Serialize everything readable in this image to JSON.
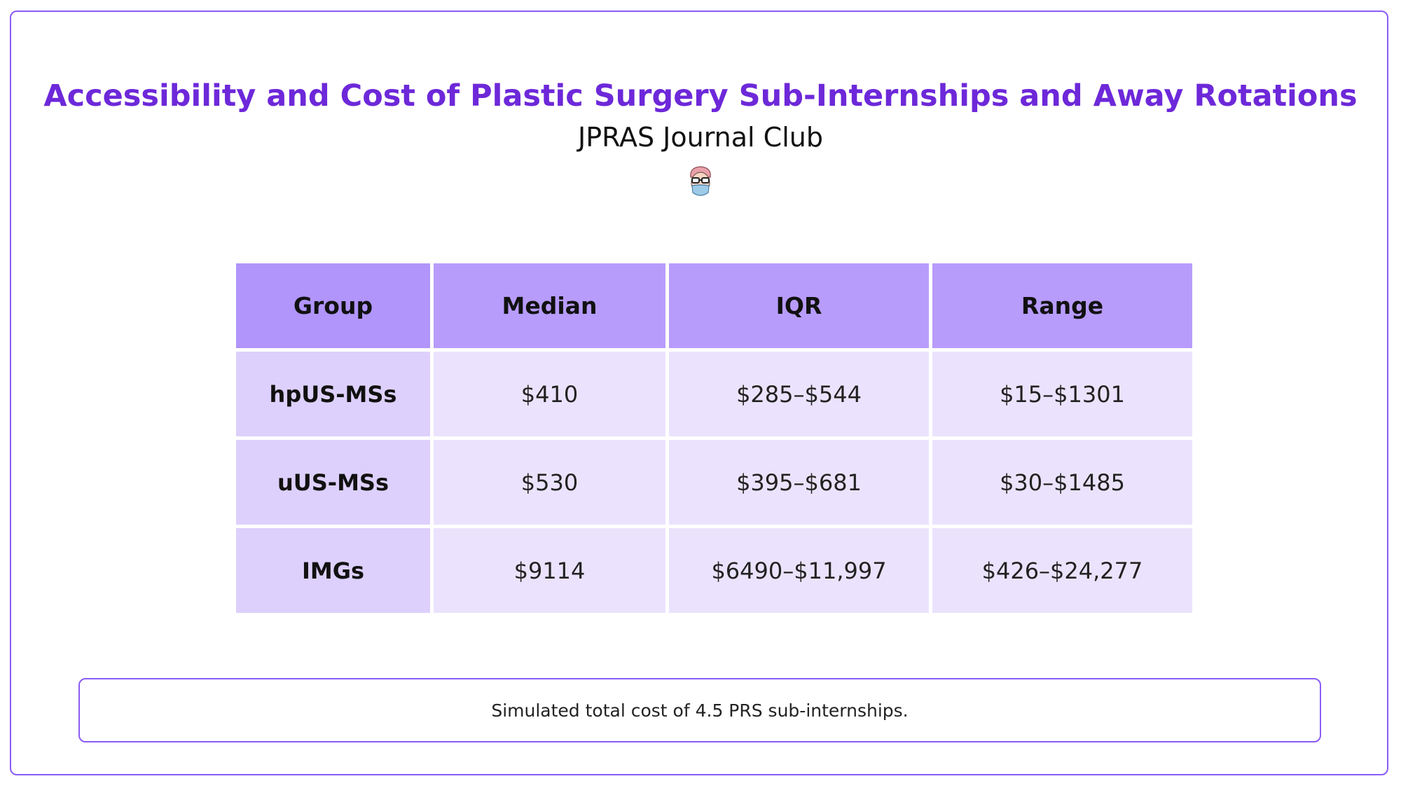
{
  "header": {
    "title": "Accessibility and Cost of Plastic Surgery Sub-Internships and Away Rotations",
    "subtitle": "JPRAS Journal Club"
  },
  "table": {
    "columns": [
      "Group",
      "Median",
      "IQR",
      "Range"
    ],
    "rows": [
      [
        "hpUS-MSs",
        "$410",
        "$285–$544",
        "$15–$1301"
      ],
      [
        "uUS-MSs",
        "$530",
        "$395–$681",
        "$30–$1485"
      ],
      [
        "IMGs",
        "$9114",
        "$6490–$11,997",
        "$426–$24,277"
      ]
    ]
  },
  "caption": "Simulated total cost of 4.5 PRS sub-internships."
}
